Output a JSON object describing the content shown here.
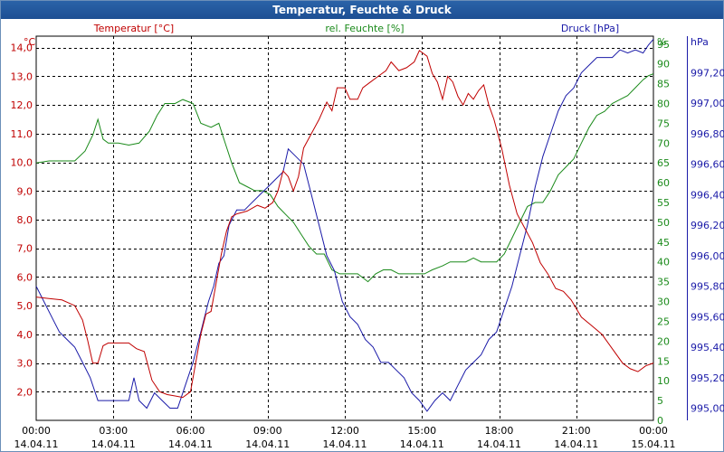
{
  "window": {
    "title": "Temperatur, Feuchte & Druck"
  },
  "colors": {
    "title_bg": "#1f5599",
    "temperature": "#c00000",
    "humidity": "#1a8a1a",
    "pressure": "#1a1aa8",
    "grid": "#000000"
  },
  "chart_data": {
    "type": "line",
    "title": "Temperatur, Feuchte & Druck",
    "grid": true,
    "x_axis": {
      "range_hours": [
        0,
        24
      ],
      "tick_labels": [
        {
          "time": "00:00",
          "date": "14.04.11"
        },
        {
          "time": "03:00",
          "date": "14.04.11"
        },
        {
          "time": "06:00",
          "date": "14.04.11"
        },
        {
          "time": "09:00",
          "date": "14.04.11"
        },
        {
          "time": "12:00",
          "date": "14.04.11"
        },
        {
          "time": "15:00",
          "date": "14.04.11"
        },
        {
          "time": "18:00",
          "date": "14.04.11"
        },
        {
          "time": "21:00",
          "date": "14.04.11"
        },
        {
          "time": "00:00",
          "date": "15.04.11"
        }
      ]
    },
    "axes": {
      "temperature": {
        "unit": "°C",
        "label": "Temperatur [°C]",
        "side": "left",
        "range": [
          1.0,
          14.4
        ],
        "ticks": [
          "2,0",
          "3,0",
          "4,0",
          "5,0",
          "6,0",
          "7,0",
          "8,0",
          "9,0",
          "10,0",
          "11,0",
          "12,0",
          "13,0",
          "14,0"
        ],
        "tick_values": [
          2,
          3,
          4,
          5,
          6,
          7,
          8,
          9,
          10,
          11,
          12,
          13,
          14
        ]
      },
      "humidity": {
        "unit": "%",
        "label": "rel. Feuchte [%]",
        "side": "right",
        "range": [
          0,
          97
        ],
        "ticks": [
          "0",
          "5",
          "10",
          "15",
          "20",
          "25",
          "30",
          "35",
          "40",
          "45",
          "50",
          "55",
          "60",
          "65",
          "70",
          "75",
          "80",
          "85",
          "90",
          "95"
        ],
        "tick_values": [
          0,
          5,
          10,
          15,
          20,
          25,
          30,
          35,
          40,
          45,
          50,
          55,
          60,
          65,
          70,
          75,
          80,
          85,
          90,
          95
        ]
      },
      "pressure": {
        "unit": "hPa",
        "label": "Druck [hPa]",
        "side": "right",
        "range": [
          994.92,
          997.44
        ],
        "ticks": [
          "995,00",
          "995,20",
          "995,40",
          "995,60",
          "995,80",
          "996,00",
          "996,20",
          "996,40",
          "996,60",
          "996,80",
          "997,00",
          "997,20"
        ],
        "tick_values": [
          995.0,
          995.2,
          995.4,
          995.6,
          995.8,
          996.0,
          996.2,
          996.4,
          996.6,
          996.8,
          997.0,
          997.2
        ]
      }
    },
    "series": [
      {
        "name": "Temperatur [°C]",
        "axis": "temperature",
        "points": [
          [
            0,
            5.3
          ],
          [
            0.5,
            5.25
          ],
          [
            1,
            5.2
          ],
          [
            1.5,
            5.0
          ],
          [
            1.8,
            4.5
          ],
          [
            2.0,
            3.8
          ],
          [
            2.2,
            3.0
          ],
          [
            2.4,
            3.0
          ],
          [
            2.6,
            3.6
          ],
          [
            2.8,
            3.7
          ],
          [
            3.2,
            3.7
          ],
          [
            3.6,
            3.7
          ],
          [
            3.9,
            3.5
          ],
          [
            4.2,
            3.4
          ],
          [
            4.5,
            2.4
          ],
          [
            4.8,
            2.0
          ],
          [
            5.1,
            1.9
          ],
          [
            5.4,
            1.85
          ],
          [
            5.7,
            1.8
          ],
          [
            6.0,
            2.0
          ],
          [
            6.2,
            3.0
          ],
          [
            6.4,
            4.0
          ],
          [
            6.6,
            4.7
          ],
          [
            6.8,
            4.8
          ],
          [
            7.0,
            5.8
          ],
          [
            7.2,
            6.8
          ],
          [
            7.4,
            7.6
          ],
          [
            7.6,
            8.1
          ],
          [
            7.8,
            8.2
          ],
          [
            8.2,
            8.3
          ],
          [
            8.6,
            8.5
          ],
          [
            8.9,
            8.4
          ],
          [
            9.2,
            8.6
          ],
          [
            9.4,
            9.0
          ],
          [
            9.6,
            9.7
          ],
          [
            9.8,
            9.5
          ],
          [
            10.0,
            9.0
          ],
          [
            10.2,
            9.5
          ],
          [
            10.4,
            10.5
          ],
          [
            10.7,
            11.0
          ],
          [
            11.0,
            11.5
          ],
          [
            11.3,
            12.1
          ],
          [
            11.5,
            11.8
          ],
          [
            11.7,
            12.6
          ],
          [
            12.0,
            12.6
          ],
          [
            12.2,
            12.2
          ],
          [
            12.5,
            12.2
          ],
          [
            12.7,
            12.6
          ],
          [
            13.0,
            12.8
          ],
          [
            13.3,
            13.0
          ],
          [
            13.6,
            13.2
          ],
          [
            13.8,
            13.5
          ],
          [
            14.1,
            13.2
          ],
          [
            14.4,
            13.3
          ],
          [
            14.7,
            13.5
          ],
          [
            14.9,
            13.9
          ],
          [
            15.2,
            13.7
          ],
          [
            15.4,
            13.1
          ],
          [
            15.6,
            12.8
          ],
          [
            15.8,
            12.2
          ],
          [
            16.0,
            13.0
          ],
          [
            16.2,
            12.8
          ],
          [
            16.4,
            12.3
          ],
          [
            16.6,
            12.0
          ],
          [
            16.8,
            12.4
          ],
          [
            17.0,
            12.2
          ],
          [
            17.2,
            12.5
          ],
          [
            17.4,
            12.7
          ],
          [
            17.6,
            12.0
          ],
          [
            17.8,
            11.5
          ],
          [
            18.1,
            10.5
          ],
          [
            18.4,
            9.2
          ],
          [
            18.7,
            8.2
          ],
          [
            19.0,
            7.7
          ],
          [
            19.3,
            7.2
          ],
          [
            19.6,
            6.5
          ],
          [
            19.9,
            6.1
          ],
          [
            20.2,
            5.6
          ],
          [
            20.5,
            5.5
          ],
          [
            20.8,
            5.2
          ],
          [
            21.2,
            4.6
          ],
          [
            21.6,
            4.3
          ],
          [
            22.0,
            4.0
          ],
          [
            22.4,
            3.5
          ],
          [
            22.8,
            3.0
          ],
          [
            23.1,
            2.8
          ],
          [
            23.4,
            2.7
          ],
          [
            23.7,
            2.9
          ],
          [
            24.0,
            3.0
          ]
        ]
      },
      {
        "name": "rel. Feuchte [%]",
        "axis": "humidity",
        "points": [
          [
            0,
            65
          ],
          [
            0.5,
            65.5
          ],
          [
            1,
            65.5
          ],
          [
            1.5,
            65.5
          ],
          [
            1.9,
            68
          ],
          [
            2.2,
            72
          ],
          [
            2.4,
            76
          ],
          [
            2.6,
            71
          ],
          [
            2.8,
            70
          ],
          [
            3.2,
            70
          ],
          [
            3.6,
            69.5
          ],
          [
            4.0,
            70
          ],
          [
            4.4,
            73
          ],
          [
            4.7,
            77
          ],
          [
            5.0,
            80
          ],
          [
            5.4,
            80
          ],
          [
            5.7,
            81
          ],
          [
            6.1,
            80
          ],
          [
            6.4,
            75
          ],
          [
            6.8,
            74
          ],
          [
            7.1,
            75
          ],
          [
            7.3,
            71
          ],
          [
            7.6,
            65
          ],
          [
            7.9,
            60
          ],
          [
            8.2,
            59
          ],
          [
            8.5,
            58
          ],
          [
            8.8,
            58
          ],
          [
            9.1,
            57
          ],
          [
            9.4,
            54
          ],
          [
            9.7,
            52
          ],
          [
            10.0,
            50
          ],
          [
            10.3,
            47
          ],
          [
            10.6,
            44
          ],
          [
            10.9,
            42
          ],
          [
            11.2,
            42
          ],
          [
            11.5,
            38
          ],
          [
            11.8,
            37
          ],
          [
            12.1,
            37
          ],
          [
            12.5,
            37
          ],
          [
            12.9,
            35
          ],
          [
            13.2,
            37
          ],
          [
            13.5,
            38
          ],
          [
            13.8,
            38
          ],
          [
            14.1,
            37
          ],
          [
            14.4,
            37
          ],
          [
            14.8,
            37
          ],
          [
            15.1,
            37
          ],
          [
            15.4,
            38
          ],
          [
            15.8,
            39
          ],
          [
            16.1,
            40
          ],
          [
            16.4,
            40
          ],
          [
            16.7,
            40
          ],
          [
            17.0,
            41
          ],
          [
            17.3,
            40
          ],
          [
            17.6,
            40
          ],
          [
            17.9,
            40
          ],
          [
            18.2,
            42
          ],
          [
            18.5,
            46
          ],
          [
            18.8,
            50
          ],
          [
            19.1,
            54
          ],
          [
            19.4,
            55
          ],
          [
            19.7,
            55
          ],
          [
            20.0,
            58
          ],
          [
            20.3,
            62
          ],
          [
            20.6,
            64
          ],
          [
            20.9,
            66
          ],
          [
            21.2,
            70
          ],
          [
            21.5,
            74
          ],
          [
            21.8,
            77
          ],
          [
            22.1,
            78
          ],
          [
            22.4,
            80
          ],
          [
            22.7,
            81
          ],
          [
            23.0,
            82
          ],
          [
            23.3,
            84
          ],
          [
            23.6,
            86
          ],
          [
            23.8,
            87
          ],
          [
            24.0,
            87.5
          ]
        ]
      },
      {
        "name": "Druck [hPa]",
        "axis": "pressure",
        "points": [
          [
            0,
            995.8
          ],
          [
            0.3,
            995.7
          ],
          [
            0.6,
            995.6
          ],
          [
            0.9,
            995.5
          ],
          [
            1.2,
            995.45
          ],
          [
            1.5,
            995.4
          ],
          [
            1.8,
            995.3
          ],
          [
            2.1,
            995.2
          ],
          [
            2.4,
            995.05
          ],
          [
            2.7,
            995.05
          ],
          [
            3.0,
            995.05
          ],
          [
            3.3,
            995.05
          ],
          [
            3.6,
            995.05
          ],
          [
            3.8,
            995.2
          ],
          [
            4.0,
            995.05
          ],
          [
            4.3,
            995.0
          ],
          [
            4.6,
            995.1
          ],
          [
            4.9,
            995.05
          ],
          [
            5.2,
            995.0
          ],
          [
            5.5,
            995.0
          ],
          [
            5.8,
            995.15
          ],
          [
            6.1,
            995.3
          ],
          [
            6.4,
            995.5
          ],
          [
            6.7,
            995.7
          ],
          [
            6.9,
            995.8
          ],
          [
            7.1,
            995.95
          ],
          [
            7.3,
            996.0
          ],
          [
            7.5,
            996.2
          ],
          [
            7.8,
            996.3
          ],
          [
            8.1,
            996.3
          ],
          [
            8.4,
            996.35
          ],
          [
            8.7,
            996.4
          ],
          [
            9.0,
            996.45
          ],
          [
            9.3,
            996.5
          ],
          [
            9.6,
            996.55
          ],
          [
            9.8,
            996.7
          ],
          [
            10.1,
            996.65
          ],
          [
            10.4,
            996.6
          ],
          [
            10.7,
            996.4
          ],
          [
            11.0,
            996.2
          ],
          [
            11.3,
            996.0
          ],
          [
            11.6,
            995.9
          ],
          [
            11.9,
            995.7
          ],
          [
            12.2,
            995.6
          ],
          [
            12.5,
            995.55
          ],
          [
            12.8,
            995.45
          ],
          [
            13.1,
            995.4
          ],
          [
            13.4,
            995.3
          ],
          [
            13.7,
            995.3
          ],
          [
            14.0,
            995.25
          ],
          [
            14.3,
            995.2
          ],
          [
            14.6,
            995.1
          ],
          [
            14.9,
            995.05
          ],
          [
            15.2,
            994.98
          ],
          [
            15.5,
            995.05
          ],
          [
            15.8,
            995.1
          ],
          [
            16.1,
            995.05
          ],
          [
            16.4,
            995.15
          ],
          [
            16.7,
            995.25
          ],
          [
            17.0,
            995.3
          ],
          [
            17.3,
            995.35
          ],
          [
            17.6,
            995.45
          ],
          [
            17.9,
            995.5
          ],
          [
            18.2,
            995.65
          ],
          [
            18.5,
            995.8
          ],
          [
            18.8,
            996.0
          ],
          [
            19.1,
            996.2
          ],
          [
            19.4,
            996.45
          ],
          [
            19.7,
            996.65
          ],
          [
            20.0,
            996.8
          ],
          [
            20.3,
            996.95
          ],
          [
            20.6,
            997.05
          ],
          [
            20.9,
            997.1
          ],
          [
            21.2,
            997.2
          ],
          [
            21.5,
            997.25
          ],
          [
            21.8,
            997.3
          ],
          [
            22.1,
            997.3
          ],
          [
            22.4,
            997.3
          ],
          [
            22.7,
            997.35
          ],
          [
            23.0,
            997.33
          ],
          [
            23.3,
            997.35
          ],
          [
            23.6,
            997.33
          ],
          [
            23.8,
            997.38
          ],
          [
            24.0,
            997.42
          ]
        ]
      }
    ]
  }
}
